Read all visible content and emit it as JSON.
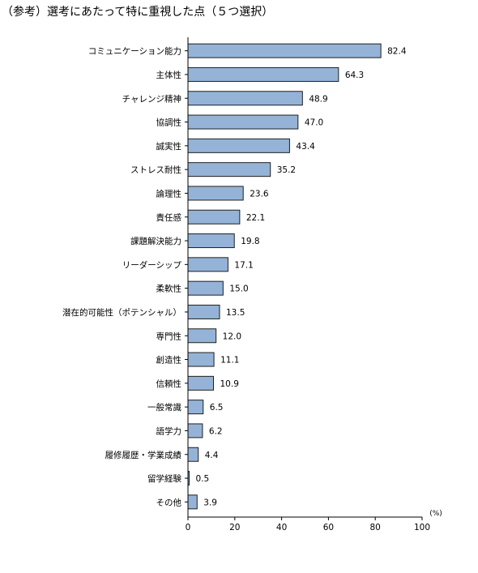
{
  "title": "（参考）選考にあたって特に重視した点（５つ選択）",
  "chart_data": {
    "type": "bar",
    "orientation": "horizontal",
    "categories": [
      "コミュニケーション能力",
      "主体性",
      "チャレンジ精神",
      "協調性",
      "誠実性",
      "ストレス耐性",
      "論理性",
      "責任感",
      "課題解決能力",
      "リーダーシップ",
      "柔軟性",
      "潜在的可能性（ポテンシャル）",
      "専門性",
      "創造性",
      "信頼性",
      "一般常識",
      "語学力",
      "履修履歴・学業成績",
      "留学経験",
      "その他"
    ],
    "values": [
      82.4,
      64.3,
      48.9,
      47.0,
      43.4,
      35.2,
      23.6,
      22.1,
      19.8,
      17.1,
      15.0,
      13.5,
      12.0,
      11.1,
      10.9,
      6.5,
      6.2,
      4.4,
      0.5,
      3.9
    ],
    "value_labels": [
      "82.4",
      "64.3",
      "48.9",
      "47.0",
      "43.4",
      "35.2",
      "23.6",
      "22.1",
      "19.8",
      "17.1",
      "15.0",
      "13.5",
      "12.0",
      "11.1",
      "10.9",
      "6.5",
      "6.2",
      "4.4",
      "0.5",
      "3.9"
    ],
    "xticks": [
      "0",
      "20",
      "40",
      "60",
      "80",
      "100"
    ],
    "xlim": [
      0,
      100
    ],
    "unit_label": "(%)",
    "grid": false,
    "bar_color": "#95b3d7",
    "bar_edge_color": "#1f1f1f"
  }
}
